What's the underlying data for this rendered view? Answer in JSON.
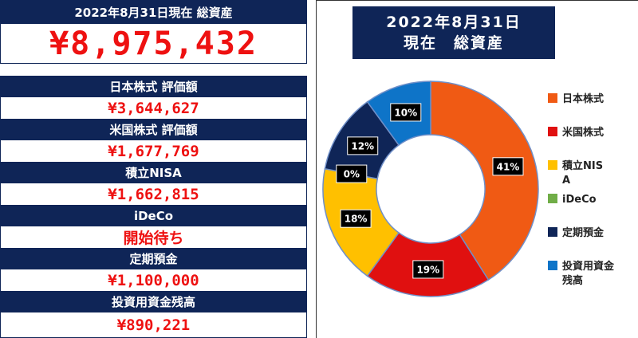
{
  "summary": {
    "header": "2022年8月31日現在 総資産",
    "total": "¥8,975,432"
  },
  "rows": [
    {
      "label": "日本株式 評価額",
      "value": "¥3,644,627"
    },
    {
      "label": "米国株式 評価額",
      "value": "¥1,677,769"
    },
    {
      "label": "積立NISA",
      "value": "¥1,662,815"
    },
    {
      "label": "iDeCo",
      "value": "開始待ち"
    },
    {
      "label": "定期預金",
      "value": "¥1,100,000"
    },
    {
      "label": "投資用資金残高",
      "value": "¥890,221"
    }
  ],
  "chart_data": {
    "type": "pie",
    "title": "2022年8月31日\n現在　総資産",
    "title_lines": [
      "2022年8月31日",
      "現在　総資産"
    ],
    "categories": [
      "日本株式",
      "米国株式",
      "積立NISA",
      "iDeCo",
      "定期預金",
      "投資用資金残高"
    ],
    "values": [
      41,
      19,
      18,
      0,
      12,
      10
    ],
    "data_labels": [
      "41%",
      "19%",
      "18%",
      "0%",
      "12%",
      "10%"
    ],
    "colors": [
      "#f05a14",
      "#e01010",
      "#ffc000",
      "#70ad47",
      "#0f2557",
      "#0e74c8"
    ],
    "legend_position": "right",
    "donut": true
  },
  "colors": {
    "navy": "#0f2557",
    "red_text": "#ee1111"
  }
}
